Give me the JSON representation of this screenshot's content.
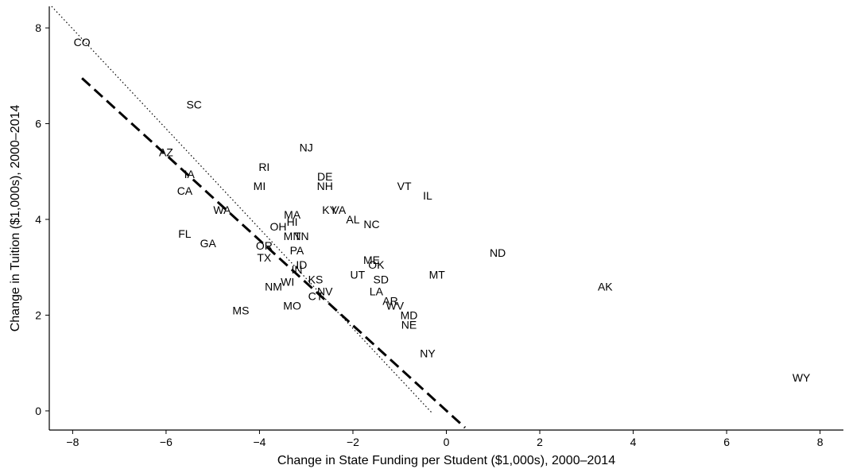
{
  "chart_data": {
    "type": "scatter",
    "title": "",
    "xlabel": "Change in State Funding per Student ($1,000s), 2000–2014",
    "ylabel": "Change in Tuition ($1,000s), 2000–2014",
    "xlim": [
      -8.5,
      8.5
    ],
    "ylim": [
      -0.4,
      8.45
    ],
    "xticks": [
      "−8",
      "−6",
      "−4",
      "−2",
      "0",
      "2",
      "4",
      "6",
      "8"
    ],
    "yticks": [
      "0",
      "2",
      "4",
      "6",
      "8"
    ],
    "grid": false,
    "legend": "none",
    "points": [
      {
        "label": "CO",
        "x": -7.8,
        "y": 7.7
      },
      {
        "label": "SC",
        "x": -5.4,
        "y": 6.4
      },
      {
        "label": "AZ",
        "x": -6.0,
        "y": 5.4
      },
      {
        "label": "IA",
        "x": -5.5,
        "y": 4.95
      },
      {
        "label": "CA",
        "x": -5.6,
        "y": 4.6
      },
      {
        "label": "WA",
        "x": -4.8,
        "y": 4.2
      },
      {
        "label": "FL",
        "x": -5.6,
        "y": 3.7
      },
      {
        "label": "GA",
        "x": -5.1,
        "y": 3.5
      },
      {
        "label": "RI",
        "x": -3.9,
        "y": 5.1
      },
      {
        "label": "MI",
        "x": -4.0,
        "y": 4.7
      },
      {
        "label": "NJ",
        "x": -3.0,
        "y": 5.5
      },
      {
        "label": "DE",
        "x": -2.6,
        "y": 4.9
      },
      {
        "label": "NH",
        "x": -2.6,
        "y": 4.7
      },
      {
        "label": "VT",
        "x": -0.9,
        "y": 4.7
      },
      {
        "label": "IL",
        "x": -0.4,
        "y": 4.5
      },
      {
        "label": "KY",
        "x": -2.5,
        "y": 4.2
      },
      {
        "label": "VA",
        "x": -2.3,
        "y": 4.2
      },
      {
        "label": "AL",
        "x": -2.0,
        "y": 4.0
      },
      {
        "label": "NC",
        "x": -1.6,
        "y": 3.9
      },
      {
        "label": "MA",
        "x": -3.3,
        "y": 4.1
      },
      {
        "label": "HI",
        "x": -3.3,
        "y": 3.95
      },
      {
        "label": "OH",
        "x": -3.6,
        "y": 3.85
      },
      {
        "label": "MN",
        "x": -3.3,
        "y": 3.65
      },
      {
        "label": "TN",
        "x": -3.1,
        "y": 3.65
      },
      {
        "label": "OR",
        "x": -3.9,
        "y": 3.45
      },
      {
        "label": "PA",
        "x": -3.2,
        "y": 3.35
      },
      {
        "label": "TX",
        "x": -3.9,
        "y": 3.2
      },
      {
        "label": "ID",
        "x": -3.1,
        "y": 3.05
      },
      {
        "label": "IN",
        "x": -3.2,
        "y": 2.95
      },
      {
        "label": "ME",
        "x": -1.6,
        "y": 3.15
      },
      {
        "label": "OK",
        "x": -1.5,
        "y": 3.05
      },
      {
        "label": "UT",
        "x": -1.9,
        "y": 2.85
      },
      {
        "label": "SD",
        "x": -1.4,
        "y": 2.75
      },
      {
        "label": "MT",
        "x": -0.2,
        "y": 2.85
      },
      {
        "label": "ND",
        "x": 1.1,
        "y": 3.3
      },
      {
        "label": "KS",
        "x": -2.8,
        "y": 2.75
      },
      {
        "label": "WI",
        "x": -3.4,
        "y": 2.7
      },
      {
        "label": "NM",
        "x": -3.7,
        "y": 2.6
      },
      {
        "label": "NV",
        "x": -2.6,
        "y": 2.5
      },
      {
        "label": "CT",
        "x": -2.8,
        "y": 2.4
      },
      {
        "label": "LA",
        "x": -1.5,
        "y": 2.5
      },
      {
        "label": "AR",
        "x": -1.2,
        "y": 2.3
      },
      {
        "label": "WV",
        "x": -1.1,
        "y": 2.2
      },
      {
        "label": "MD",
        "x": -0.8,
        "y": 2.0
      },
      {
        "label": "NE",
        "x": -0.8,
        "y": 1.8
      },
      {
        "label": "MO",
        "x": -3.3,
        "y": 2.2
      },
      {
        "label": "MS",
        "x": -4.4,
        "y": 2.1
      },
      {
        "label": "NY",
        "x": -0.4,
        "y": 1.2
      },
      {
        "label": "AK",
        "x": 3.4,
        "y": 2.6
      },
      {
        "label": "WY",
        "x": 7.6,
        "y": 0.7
      }
    ],
    "fit_lines": [
      {
        "style": "dotted",
        "x": [
          -8.45,
          -0.3
        ],
        "y": [
          8.45,
          -0.05
        ]
      },
      {
        "style": "dashed",
        "x": [
          -7.8,
          0.4
        ],
        "y": [
          6.95,
          -0.35
        ]
      }
    ]
  }
}
